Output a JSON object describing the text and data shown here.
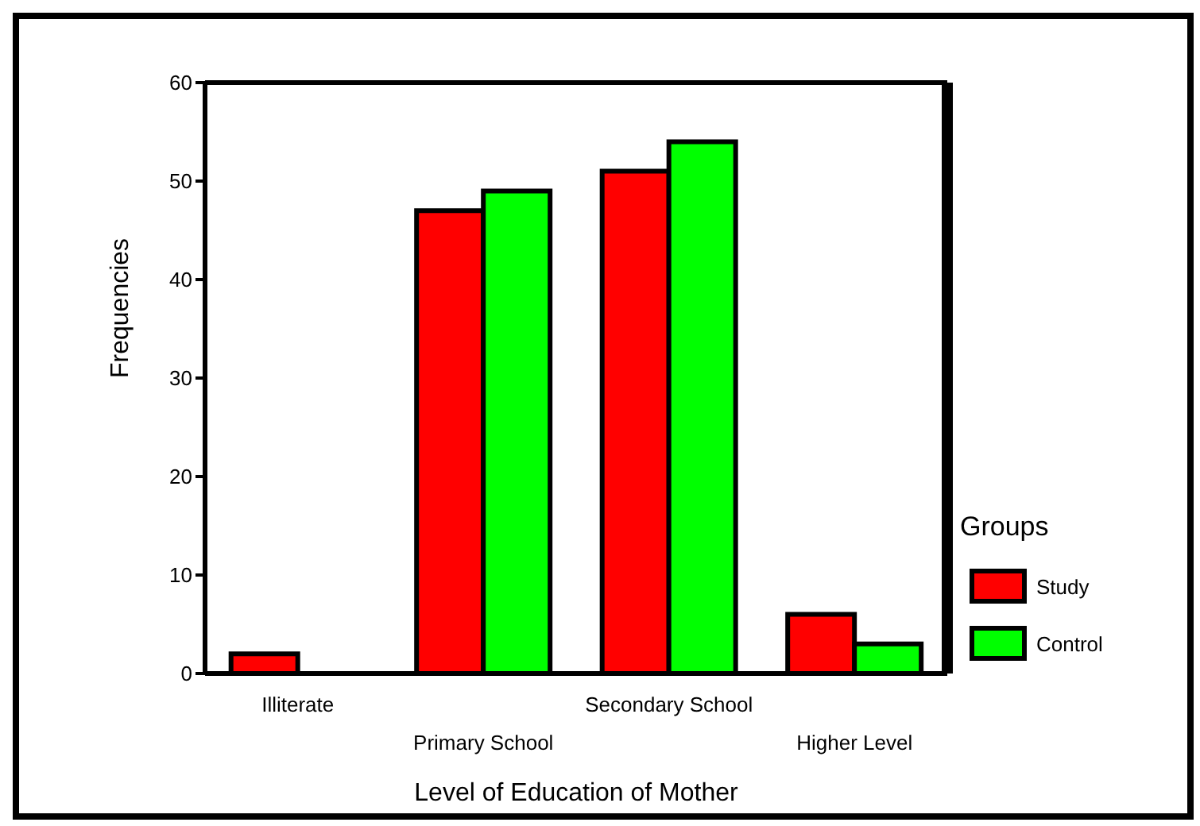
{
  "chart_data": {
    "type": "bar",
    "xlabel": "Level of Education of Mother",
    "ylabel": "Frequencies",
    "legend_title": "Groups",
    "categories": [
      "Illiterate",
      "Primary School",
      "Secondary School",
      "Higher Level"
    ],
    "series": [
      {
        "name": "Study",
        "color": "#ff0000",
        "values": [
          2,
          47,
          51,
          6
        ]
      },
      {
        "name": "Control",
        "color": "#00ff00",
        "values": [
          0,
          49,
          54,
          3
        ]
      }
    ],
    "ylim": [
      0,
      60
    ],
    "yticks": [
      0,
      10,
      20,
      30,
      40,
      50,
      60
    ],
    "legend": "right"
  }
}
